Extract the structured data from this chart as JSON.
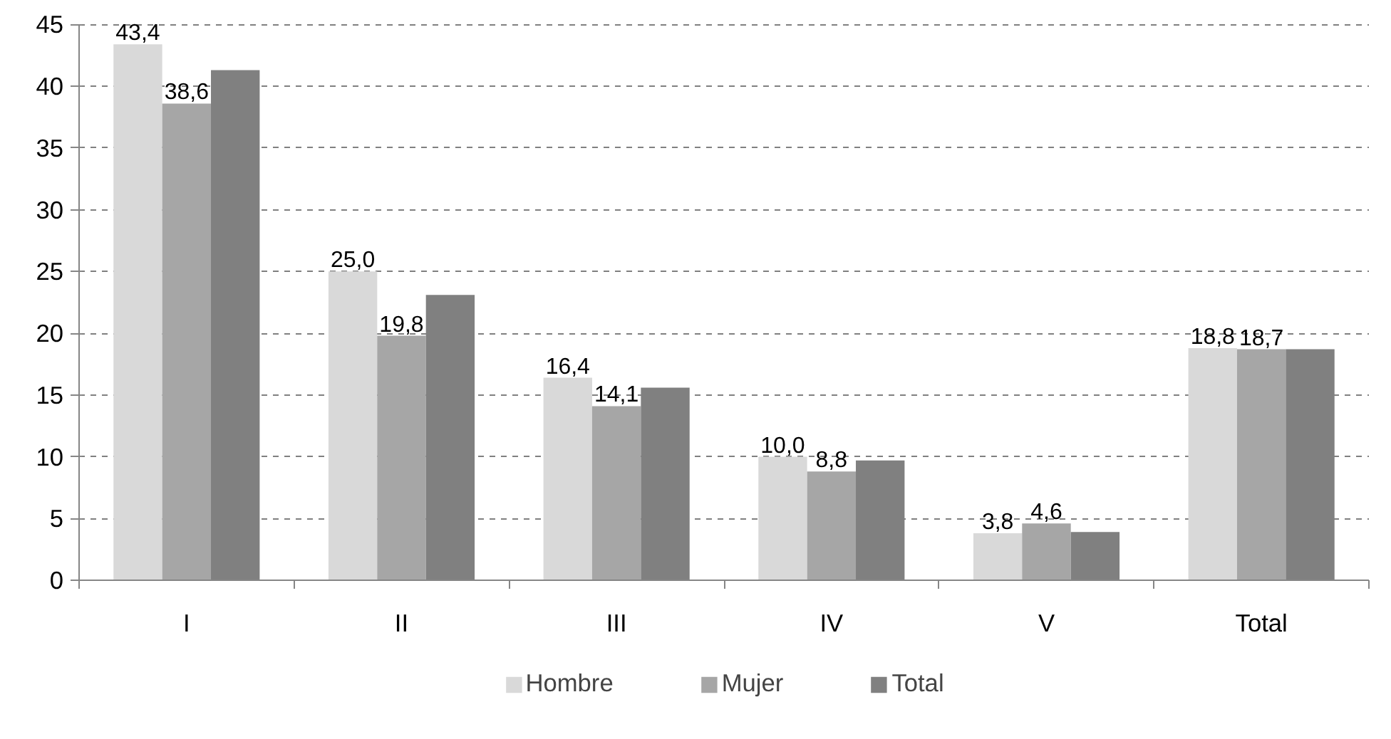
{
  "chart_data": {
    "type": "bar",
    "categories": [
      "I",
      "II",
      "III",
      "IV",
      "V",
      "Total"
    ],
    "series": [
      {
        "name": "Hombre",
        "color": "#d9d9d9",
        "values": [
          43.4,
          25.0,
          16.4,
          10.0,
          3.8,
          18.8
        ],
        "value_labels": [
          "43,4",
          "25,0",
          "16,4",
          "10,0",
          "3,8",
          "18,8"
        ]
      },
      {
        "name": "Mujer",
        "color": "#a6a6a6",
        "values": [
          38.6,
          19.8,
          14.1,
          8.8,
          4.6,
          18.7
        ],
        "value_labels": [
          "38,6",
          "19,8",
          "14,1",
          "8,8",
          "4,6",
          "18,7"
        ]
      },
      {
        "name": "Total",
        "color": "#808080",
        "values": [
          41.3,
          23.1,
          15.6,
          9.7,
          3.9,
          18.7
        ]
      }
    ],
    "ylim": [
      0,
      45
    ],
    "yticks": [
      0,
      5,
      10,
      15,
      20,
      25,
      30,
      35,
      40,
      45
    ],
    "grid": "y",
    "legend": "bottom"
  }
}
